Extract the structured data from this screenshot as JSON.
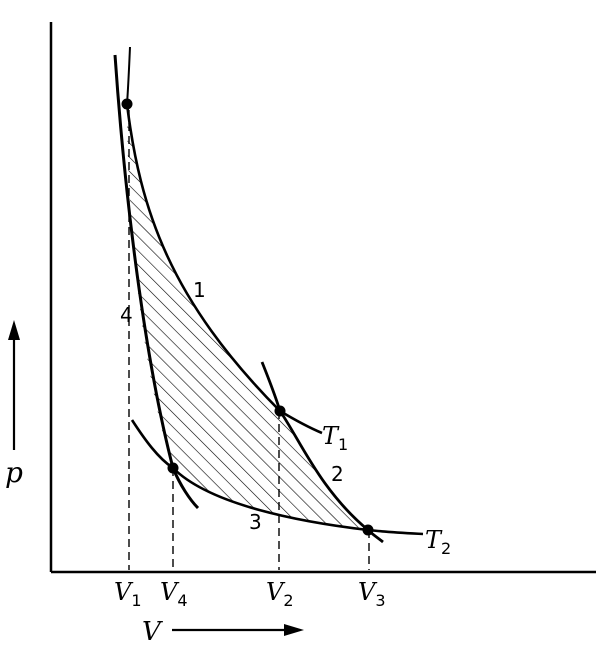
{
  "axes": {
    "p_label": "p",
    "v_label": "V"
  },
  "ticks": [
    {
      "main": "V",
      "sub": "1"
    },
    {
      "main": "V",
      "sub": "4"
    },
    {
      "main": "V",
      "sub": "2"
    },
    {
      "main": "V",
      "sub": "3"
    }
  ],
  "curves": {
    "t1": {
      "main": "T",
      "sub": "1"
    },
    "t2": {
      "main": "T",
      "sub": "2"
    }
  },
  "segments": {
    "s1": "1",
    "s2": "2",
    "s3": "3",
    "s4": "4"
  },
  "colors": {
    "ink": "#000000",
    "background": "#ffffff"
  }
}
